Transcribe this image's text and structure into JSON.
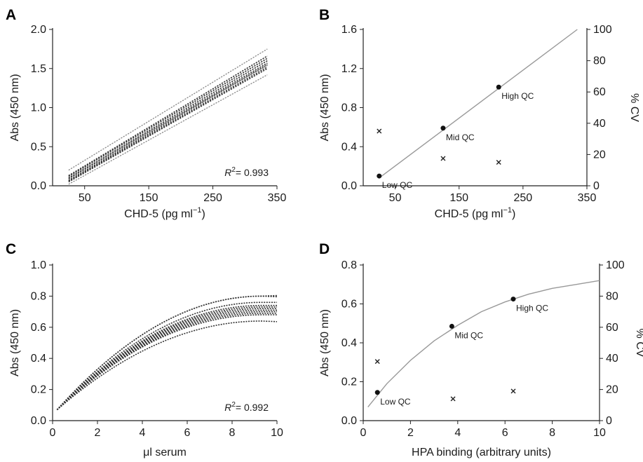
{
  "chart_data": [
    {
      "panel": "A",
      "type": "line",
      "xlabel": "CHD-5 (pg ml−1)",
      "ylabel": "Abs (450 nm)",
      "xlim": [
        0,
        350
      ],
      "ylim": [
        0,
        2.0
      ],
      "x_ticks": [
        "50",
        "150",
        "250",
        "350"
      ],
      "y_ticks": [
        "0.0",
        "0.5",
        "1.0",
        "1.5",
        "2.0"
      ],
      "annotation": {
        "prefix": "R",
        "sup": "2",
        "text": "= 0.993"
      },
      "series": [
        {
          "x": [
            25,
            335
          ],
          "y": [
            0.05,
            1.5
          ]
        },
        {
          "x": [
            25,
            335
          ],
          "y": [
            0.06,
            1.52
          ]
        },
        {
          "x": [
            25,
            335
          ],
          "y": [
            0.07,
            1.55
          ]
        },
        {
          "x": [
            25,
            335
          ],
          "y": [
            0.09,
            1.57
          ]
        },
        {
          "x": [
            25,
            335
          ],
          "y": [
            0.1,
            1.6
          ]
        },
        {
          "x": [
            25,
            335
          ],
          "y": [
            0.12,
            1.63
          ]
        },
        {
          "x": [
            25,
            335
          ],
          "y": [
            0.13,
            1.66
          ]
        },
        {
          "x": [
            25,
            335
          ],
          "y": [
            0.11,
            1.54
          ]
        },
        {
          "x": [
            25,
            335
          ],
          "y": [
            0.02,
            1.42
          ]
        },
        {
          "x": [
            25,
            335
          ],
          "y": [
            0.2,
            1.75
          ]
        }
      ]
    },
    {
      "panel": "B",
      "type": "scatter",
      "xlabel": "CHD-5 (pg ml−1)",
      "ylabel": "Abs (450 nm)",
      "y2label": "% CV",
      "xlim": [
        0,
        350
      ],
      "ylim": [
        0,
        1.6
      ],
      "y2lim": [
        0,
        100
      ],
      "x_ticks": [
        "50",
        "150",
        "250",
        "350"
      ],
      "y_ticks": [
        "0.0",
        "0.4",
        "0.8",
        "1.2",
        "1.6"
      ],
      "y2_ticks": [
        "0",
        "20",
        "40",
        "60",
        "80",
        "100"
      ],
      "fit_line": {
        "x": [
          25,
          335
        ],
        "y": [
          0.08,
          1.6
        ]
      },
      "qc_points": [
        {
          "label": "Low QC",
          "x": 25,
          "y": 0.1
        },
        {
          "label": "Mid QC",
          "x": 125,
          "y": 0.59
        },
        {
          "label": "High QC",
          "x": 212,
          "y": 1.01
        }
      ],
      "cv_points": [
        {
          "x": 25,
          "y": 35
        },
        {
          "x": 125,
          "y": 17.5
        },
        {
          "x": 212,
          "y": 15
        }
      ]
    },
    {
      "panel": "C",
      "type": "line",
      "xlabel": "μl serum",
      "ylabel": "Abs (450 nm)",
      "xlim": [
        0,
        10
      ],
      "ylim": [
        0,
        1.0
      ],
      "x_ticks": [
        "0",
        "2",
        "4",
        "6",
        "8",
        "10"
      ],
      "y_ticks": [
        "0.0",
        "0.2",
        "0.4",
        "0.6",
        "0.8",
        "1.0"
      ],
      "annotation": {
        "prefix": "R",
        "sup": "2",
        "text": "= 0.992"
      },
      "series": [
        {
          "x": [
            0.2,
            9.5
          ],
          "y": [
            0.07,
            0.8
          ],
          "end": 10,
          "end_y": 0.81
        },
        {
          "x": [
            0.2,
            9.0
          ],
          "y": [
            0.07,
            0.8
          ],
          "end": 10,
          "end_y": 0.79
        },
        {
          "x": [
            0.2,
            9.5
          ],
          "y": [
            0.07,
            0.76
          ],
          "end": 10,
          "end_y": 0.76
        },
        {
          "x": [
            0.2,
            9.5
          ],
          "y": [
            0.07,
            0.74
          ],
          "end": 10,
          "end_y": 0.74
        },
        {
          "x": [
            0.2,
            9.5
          ],
          "y": [
            0.07,
            0.73
          ],
          "end": 10,
          "end_y": 0.73
        },
        {
          "x": [
            0.2,
            9.5
          ],
          "y": [
            0.07,
            0.72
          ],
          "end": 10,
          "end_y": 0.72
        },
        {
          "x": [
            0.2,
            9.5
          ],
          "y": [
            0.07,
            0.71
          ],
          "end": 10,
          "end_y": 0.71
        },
        {
          "x": [
            0.2,
            9.5
          ],
          "y": [
            0.07,
            0.7
          ],
          "end": 10,
          "end_y": 0.7
        },
        {
          "x": [
            0.2,
            9.5
          ],
          "y": [
            0.07,
            0.69
          ],
          "end": 10,
          "end_y": 0.69
        },
        {
          "x": [
            0.2,
            9.5
          ],
          "y": [
            0.07,
            0.68
          ],
          "end": 10,
          "end_y": 0.68
        },
        {
          "x": [
            0.2,
            9.5
          ],
          "y": [
            0.07,
            0.64
          ],
          "end": 10,
          "end_y": 0.63
        }
      ]
    },
    {
      "panel": "D",
      "type": "scatter",
      "xlabel": "HPA binding (arbitrary units)",
      "ylabel": "Abs (450 nm)",
      "y2label": "% CV",
      "xlim": [
        0,
        10
      ],
      "ylim": [
        0,
        0.8
      ],
      "y2lim": [
        0,
        100
      ],
      "x_ticks": [
        "0",
        "2",
        "4",
        "6",
        "8",
        "10"
      ],
      "y_ticks": [
        "0.0",
        "0.2",
        "0.4",
        "0.6",
        "0.8"
      ],
      "y2_ticks": [
        "0",
        "20",
        "40",
        "60",
        "80",
        "100"
      ],
      "fit_curve": {
        "x": [
          0.2,
          1,
          2,
          3,
          4,
          5,
          6,
          7,
          8,
          9,
          10
        ],
        "y": [
          0.07,
          0.19,
          0.31,
          0.41,
          0.49,
          0.56,
          0.61,
          0.65,
          0.68,
          0.7,
          0.72
        ]
      },
      "qc_points": [
        {
          "label": "Low QC",
          "x": 0.6,
          "y": 0.145
        },
        {
          "label": "Mid QC",
          "x": 3.75,
          "y": 0.485
        },
        {
          "label": "High QC",
          "x": 6.35,
          "y": 0.625
        }
      ],
      "cv_points": [
        {
          "x": 0.6,
          "y": 38
        },
        {
          "x": 3.8,
          "y": 14
        },
        {
          "x": 6.35,
          "y": 19
        }
      ]
    }
  ]
}
